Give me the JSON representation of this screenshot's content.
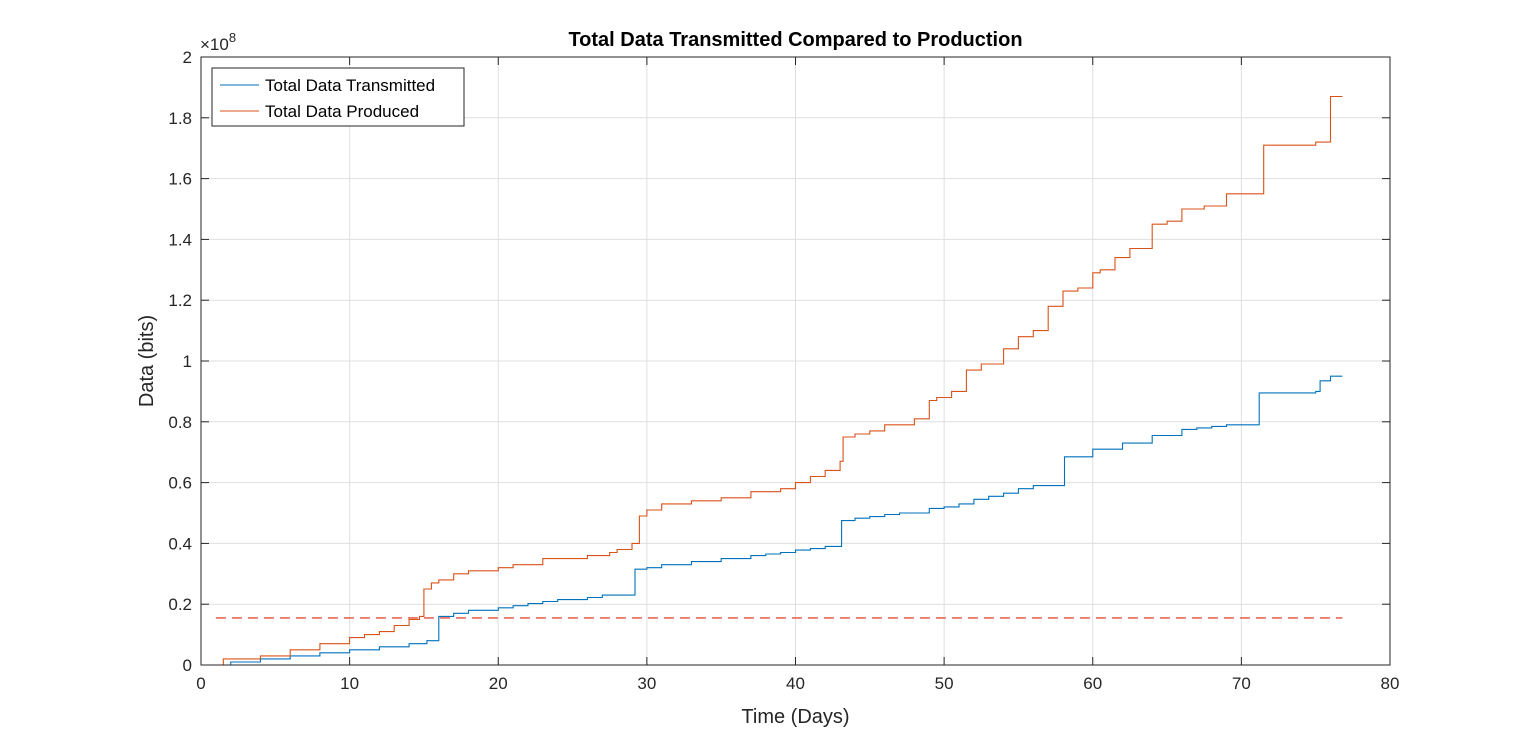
{
  "chart_data": {
    "type": "line",
    "title": "Total Data Transmitted Compared to Production",
    "xlabel": "Time (Days)",
    "ylabel": "Data (bits)",
    "y_exponent": {
      "prefix": "×10",
      "power": "8"
    },
    "xlim": [
      0,
      80
    ],
    "ylim": [
      0,
      200000000
    ],
    "x_ticks": [
      0,
      10,
      20,
      30,
      40,
      50,
      60,
      70,
      80
    ],
    "x_tick_labels": [
      "0",
      "10",
      "20",
      "30",
      "40",
      "50",
      "60",
      "70",
      "80"
    ],
    "y_ticks": [
      0,
      20000000,
      40000000,
      60000000,
      80000000,
      100000000,
      120000000,
      140000000,
      160000000,
      180000000,
      200000000
    ],
    "y_tick_labels": [
      "0",
      "0.2",
      "0.4",
      "0.6",
      "0.8",
      "1",
      "1.2",
      "1.4",
      "1.6",
      "1.8",
      "2"
    ],
    "grid": true,
    "legend_position": "top-left",
    "series": [
      {
        "name": "Total Data Transmitted",
        "color": "#0072BD",
        "style": "solid",
        "step": true,
        "x": [
          1.0,
          2.0,
          4.0,
          6.0,
          8.0,
          10.0,
          12.0,
          14.0,
          15.2,
          16.0,
          17.0,
          18.0,
          20.0,
          21.0,
          22.0,
          23.0,
          24.0,
          26.0,
          27.0,
          29.0,
          29.2,
          30.0,
          31.0,
          33.0,
          35.0,
          37.0,
          38.0,
          39.0,
          40.0,
          41.0,
          42.0,
          43.1,
          44.0,
          45.0,
          46.0,
          47.0,
          49.0,
          50.0,
          51.0,
          52.0,
          53.0,
          54.0,
          55.0,
          56.0,
          58.0,
          58.1,
          60.0,
          62.0,
          64.0,
          66.0,
          67.0,
          68.0,
          69.0,
          71.0,
          71.2,
          75.0,
          75.3,
          76.0,
          76.8
        ],
        "y": [
          0,
          1000000,
          2000000,
          3000000,
          4000000,
          5000000,
          6000000,
          7000000,
          8000000,
          16000000,
          17000000,
          18000000,
          18800000,
          19500000,
          20200000,
          20900000,
          21500000,
          22200000,
          23000000,
          23000000,
          31500000,
          32000000,
          33000000,
          34000000,
          35000000,
          36000000,
          36500000,
          37000000,
          37800000,
          38300000,
          39000000,
          47500000,
          48300000,
          48800000,
          49500000,
          50000000,
          51500000,
          52000000,
          53000000,
          54500000,
          55500000,
          56500000,
          58000000,
          59000000,
          59000000,
          68500000,
          71000000,
          73000000,
          75500000,
          77500000,
          78000000,
          78500000,
          79000000,
          79000000,
          89500000,
          90000000,
          93500000,
          95000000,
          95000000
        ]
      },
      {
        "name": "Total Data Produced",
        "color": "#D95319",
        "style": "solid",
        "step": true,
        "x": [
          1.0,
          1.5,
          4.0,
          6.0,
          8.0,
          10.0,
          11.0,
          12.0,
          13.0,
          14.0,
          14.7,
          15.0,
          15.5,
          16.0,
          17.0,
          18.0,
          20.0,
          21.0,
          23.0,
          26.0,
          27.5,
          28.0,
          29.0,
          29.5,
          30.0,
          31.0,
          33.0,
          35.0,
          37.0,
          39.0,
          40.0,
          41.0,
          42.0,
          43.0,
          43.2,
          44.0,
          45.0,
          46.0,
          48.0,
          49.0,
          49.5,
          50.5,
          51.5,
          52.5,
          54.0,
          55.0,
          56.0,
          57.0,
          58.0,
          59.0,
          60.0,
          60.5,
          61.5,
          62.5,
          64.0,
          65.0,
          66.0,
          67.5,
          69.0,
          71.0,
          71.5,
          75.0,
          76.0,
          76.8
        ],
        "y": [
          0,
          2000000,
          3000000,
          5000000,
          7000000,
          9000000,
          10000000,
          11000000,
          13000000,
          15000000,
          16000000,
          25000000,
          27000000,
          28000000,
          30000000,
          31000000,
          32000000,
          33000000,
          35000000,
          36000000,
          37000000,
          38000000,
          40000000,
          49000000,
          51000000,
          53000000,
          54000000,
          55000000,
          57000000,
          58000000,
          60000000,
          62000000,
          64000000,
          67000000,
          75000000,
          76000000,
          77000000,
          79000000,
          81000000,
          87000000,
          88000000,
          90000000,
          97000000,
          99000000,
          104000000,
          108000000,
          110000000,
          118000000,
          123000000,
          124000000,
          129000000,
          130000000,
          134000000,
          137000000,
          145000000,
          146000000,
          150000000,
          151000000,
          155000000,
          155000000,
          171000000,
          172000000,
          187000000,
          187000000
        ]
      },
      {
        "name": "",
        "color": "#E8685A",
        "style": "dashed",
        "step": false,
        "x": [
          1.0,
          76.8
        ],
        "y": [
          15500000,
          15500000
        ]
      }
    ]
  }
}
